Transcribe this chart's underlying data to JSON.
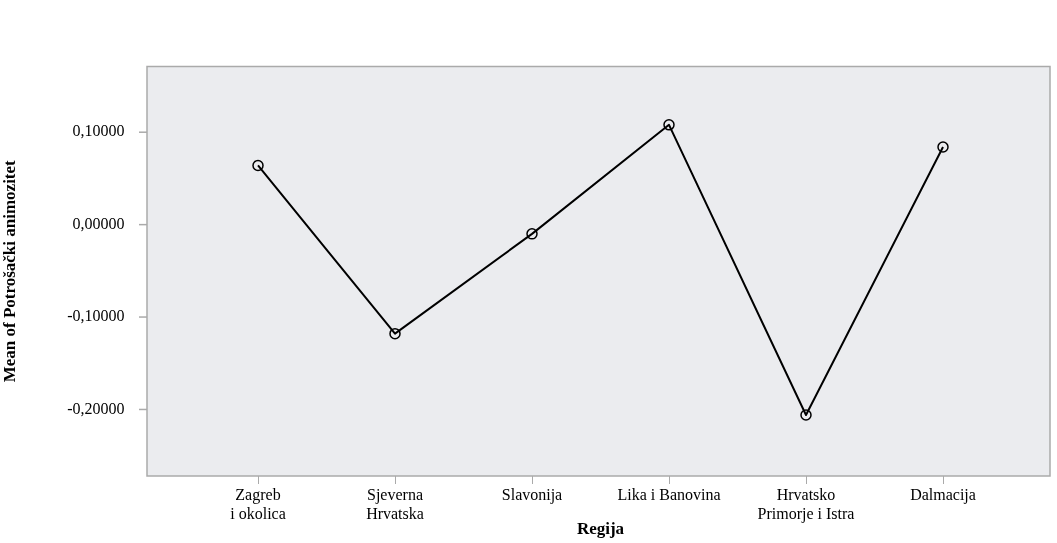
{
  "chart_data": {
    "type": "line",
    "xlabel": "Regija",
    "ylabel": "Mean of Potrošački animozitet",
    "categories": [
      "Zagreb\ni okolica",
      "Sjeverna\nHrvatska",
      "Slavonija",
      "Lika i Banovina",
      "Hrvatsko\nPrimorje i Istra",
      "Dalmacija"
    ],
    "series": [
      {
        "color": "#000000",
        "values": [
          0.064,
          -0.118,
          -0.01,
          0.108,
          -0.206,
          0.084
        ]
      }
    ],
    "ylim": [
      -0.272,
      0.171
    ],
    "yticks": [
      {
        "value": -0.2,
        "label": "-0,20000"
      },
      {
        "value": -0.1,
        "label": "-0,10000"
      },
      {
        "value": 0,
        "label": "0,00000"
      },
      {
        "value": 0.1,
        "label": "0,10000"
      }
    ],
    "grid": false,
    "legend": false,
    "marker": "circle",
    "line_style": "solid"
  }
}
